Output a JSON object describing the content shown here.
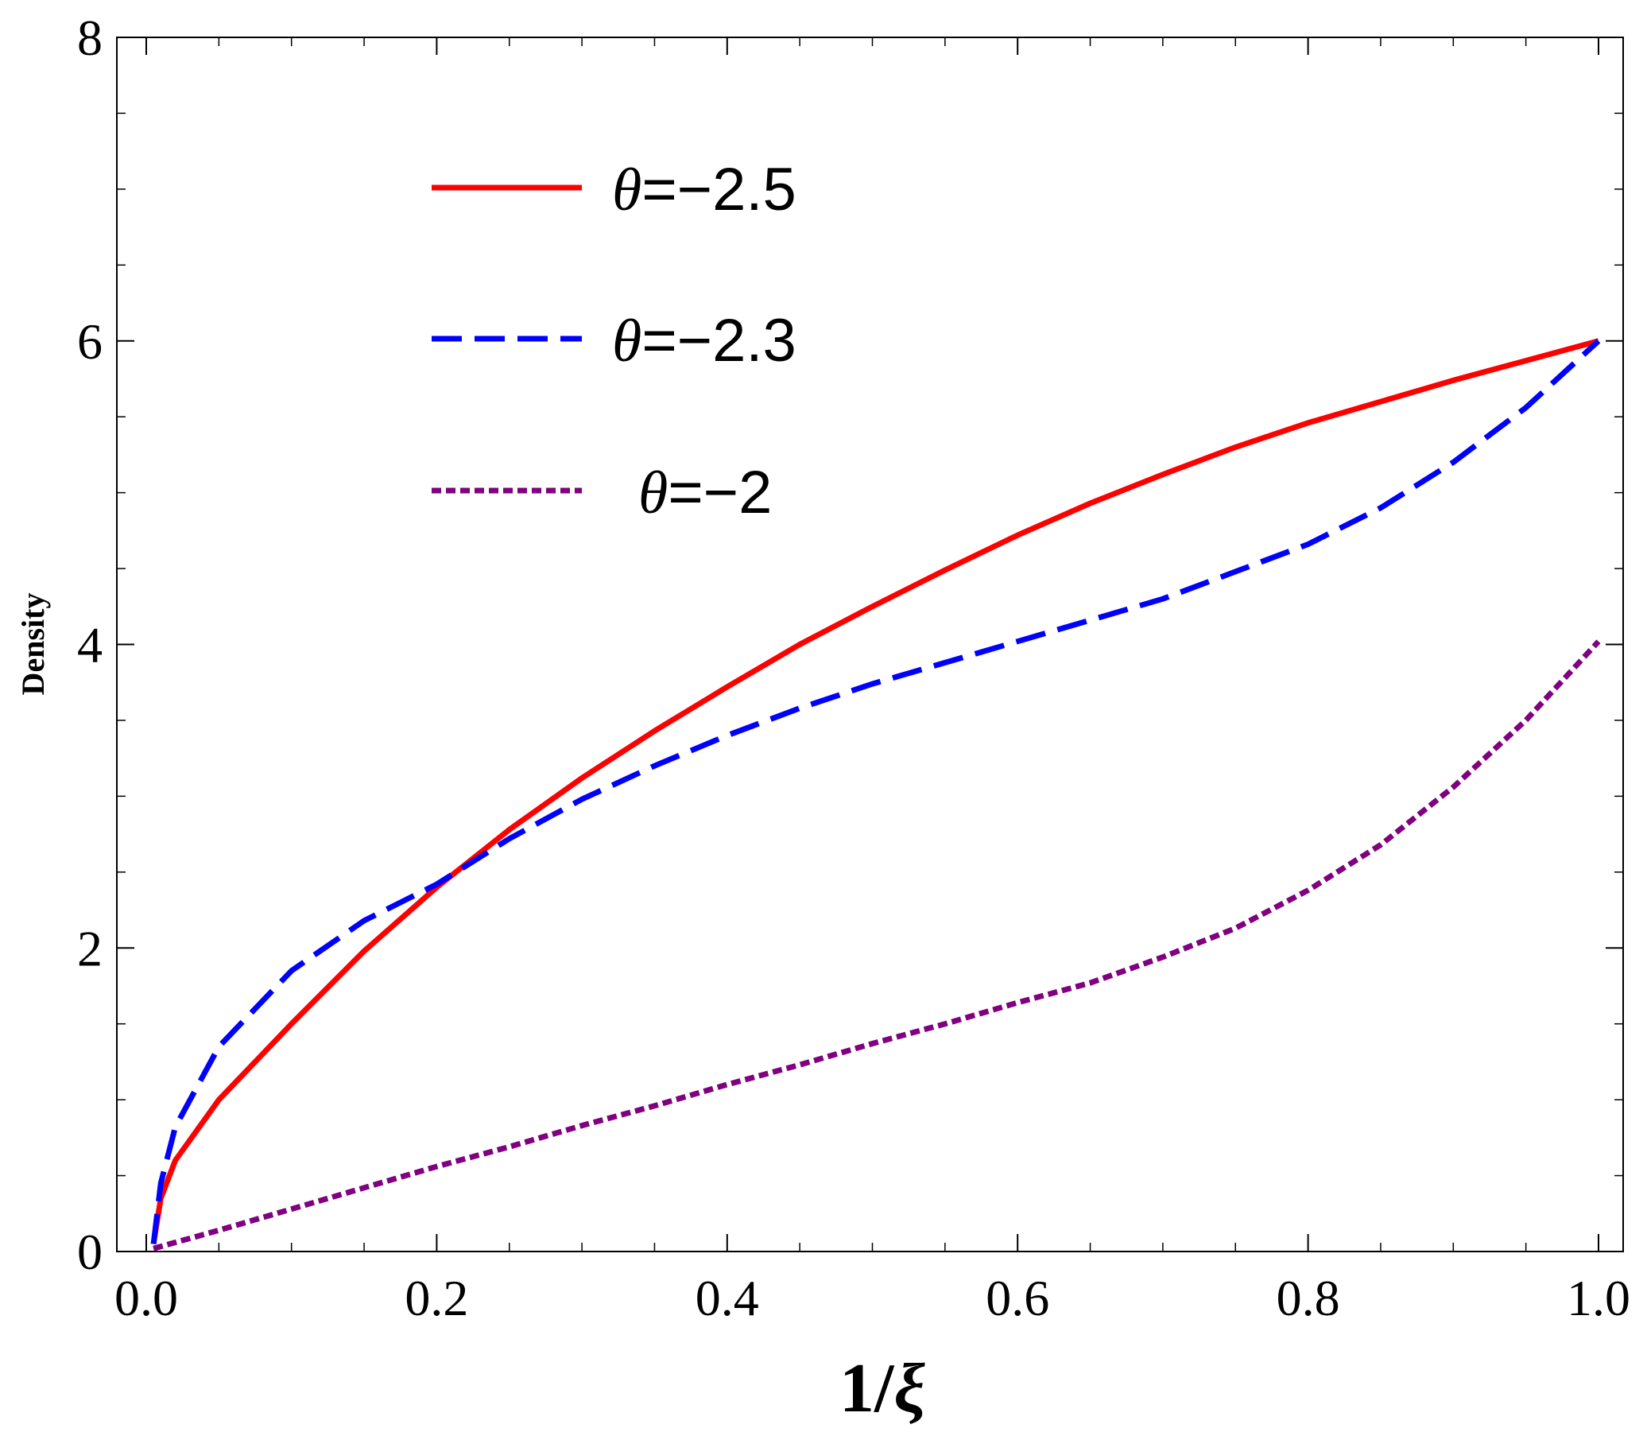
{
  "chart_data": {
    "type": "line",
    "title": "",
    "xlabel": "1/ξ",
    "xlabel_parts": {
      "number": "1/",
      "symbol": "ξ"
    },
    "ylabel": "Density",
    "xlim": [
      0,
      1
    ],
    "ylim": [
      0,
      8
    ],
    "x_ticks": [
      "0.0",
      "0.2",
      "0.4",
      "0.6",
      "0.8",
      "1.0"
    ],
    "y_ticks": [
      "0",
      "2",
      "4",
      "6",
      "8"
    ],
    "grid": false,
    "legend_position": "top-left",
    "series": [
      {
        "name": "θ=−2.5",
        "legend_symbol": "θ",
        "legend_value": "=−2.5",
        "color": "#ff0000",
        "style": "solid",
        "x": [
          0.005,
          0.01,
          0.02,
          0.05,
          0.1,
          0.15,
          0.2,
          0.25,
          0.3,
          0.35,
          0.4,
          0.45,
          0.5,
          0.55,
          0.6,
          0.65,
          0.7,
          0.75,
          0.8,
          0.85,
          0.9,
          0.95,
          1.0
        ],
        "y": [
          0.05,
          0.35,
          0.6,
          1.0,
          1.5,
          1.98,
          2.4,
          2.78,
          3.12,
          3.43,
          3.72,
          4.0,
          4.25,
          4.49,
          4.72,
          4.93,
          5.12,
          5.3,
          5.46,
          5.6,
          5.74,
          5.87,
          6.0
        ]
      },
      {
        "name": "θ=−2.3",
        "legend_symbol": "θ",
        "legend_value": "=−2.3",
        "color": "#0000ff",
        "style": "dashed",
        "x": [
          0.005,
          0.01,
          0.02,
          0.05,
          0.1,
          0.15,
          0.2,
          0.25,
          0.3,
          0.35,
          0.4,
          0.45,
          0.5,
          0.55,
          0.6,
          0.65,
          0.7,
          0.75,
          0.8,
          0.85,
          0.9,
          0.95,
          1.0
        ],
        "y": [
          0.05,
          0.45,
          0.82,
          1.35,
          1.85,
          2.18,
          2.42,
          2.72,
          2.98,
          3.2,
          3.4,
          3.58,
          3.74,
          3.88,
          4.02,
          4.16,
          4.3,
          4.48,
          4.66,
          4.9,
          5.2,
          5.56,
          6.0
        ]
      },
      {
        "name": "θ=−2",
        "legend_symbol": "θ",
        "legend_value": "=−2",
        "color": "#800080",
        "style": "dotted",
        "x": [
          0.005,
          0.05,
          0.1,
          0.15,
          0.2,
          0.25,
          0.3,
          0.35,
          0.4,
          0.45,
          0.5,
          0.55,
          0.6,
          0.65,
          0.7,
          0.75,
          0.8,
          0.85,
          0.9,
          0.95,
          1.0
        ],
        "y": [
          0.02,
          0.14,
          0.28,
          0.42,
          0.56,
          0.69,
          0.83,
          0.96,
          1.1,
          1.23,
          1.37,
          1.5,
          1.64,
          1.77,
          1.94,
          2.13,
          2.38,
          2.68,
          3.06,
          3.5,
          4.02
        ]
      }
    ]
  }
}
